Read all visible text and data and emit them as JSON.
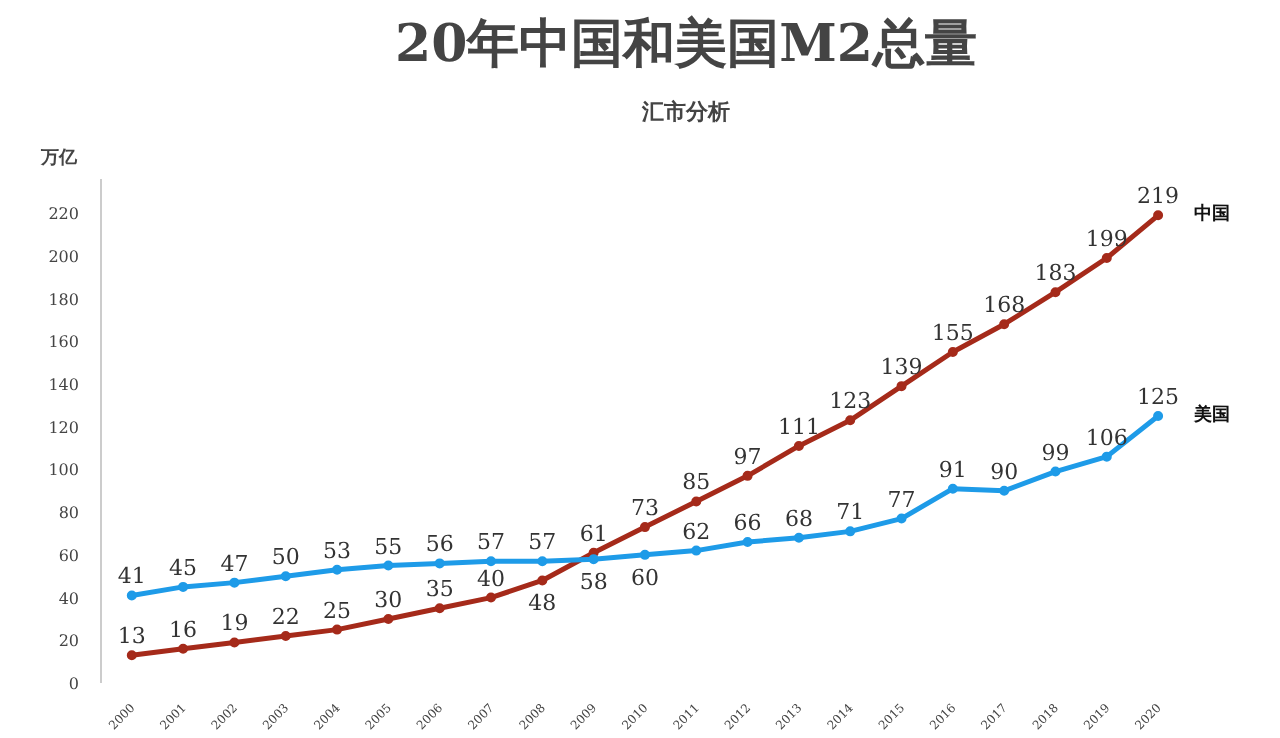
{
  "chart_data": {
    "type": "line",
    "title": "20年中国和美国M2总量",
    "subtitle": "汇市分析",
    "ylabel": "万亿",
    "categories": [
      "2000",
      "2001",
      "2002",
      "2003",
      "2004",
      "2005",
      "2006",
      "2007",
      "2008",
      "2009",
      "2010",
      "2011",
      "2012",
      "2013",
      "2014",
      "2015",
      "2016",
      "2017",
      "2018",
      "2019",
      "2020"
    ],
    "series": [
      {
        "name": "中国",
        "color": "#a52a1a",
        "values": [
          13,
          16,
          19,
          22,
          25,
          30,
          35,
          40,
          48,
          61,
          73,
          85,
          97,
          111,
          123,
          139,
          155,
          168,
          183,
          199,
          219
        ]
      },
      {
        "name": "美国",
        "color": "#1e9be8",
        "values": [
          41,
          45,
          47,
          50,
          53,
          55,
          56,
          57,
          57,
          58,
          60,
          62,
          66,
          68,
          71,
          77,
          91,
          90,
          99,
          106,
          125
        ]
      }
    ],
    "ylim": [
      0,
      236
    ],
    "yticks": [
      0,
      20,
      40,
      60,
      80,
      100,
      120,
      140,
      160,
      180,
      200,
      220
    ],
    "grid": false,
    "data_labels": true,
    "marker": "circle",
    "line_style": "solid"
  }
}
